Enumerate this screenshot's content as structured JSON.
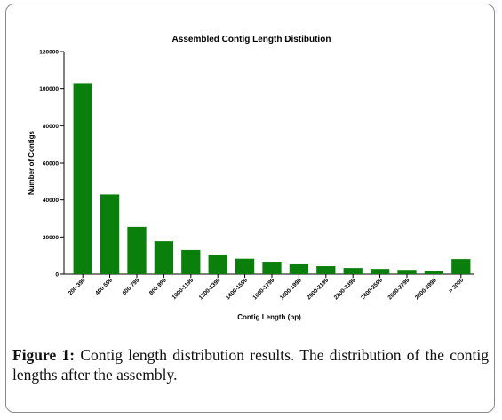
{
  "chart_data": {
    "type": "bar",
    "title": "Assembled Contig Length Distibution",
    "xlabel": "Contig Length (bp)",
    "ylabel": "Number of Contigs",
    "ylim": [
      0,
      120000
    ],
    "y_ticks": [
      "0",
      "20000",
      "40000",
      "60000",
      "80000",
      "100000",
      "120000"
    ],
    "categories": [
      "200-399",
      "400-599",
      "600-799",
      "800-999",
      "1000-1199",
      "1200-1399",
      "1400-1599",
      "1600-1799",
      "1800-1999",
      "2000-2199",
      "2200-2399",
      "2400-2599",
      "2600-2799",
      "2800-2999",
      "> 3000"
    ],
    "values": [
      103000,
      43000,
      25500,
      17700,
      13000,
      10100,
      8300,
      6700,
      5300,
      4300,
      3300,
      2800,
      2300,
      1700,
      8100
    ],
    "bar_color": "#0b7f0b",
    "grid": false
  },
  "caption": {
    "label": "Figure 1:",
    "text": " Contig length distribution results. The distribution of the contig lengths after the assembly."
  }
}
